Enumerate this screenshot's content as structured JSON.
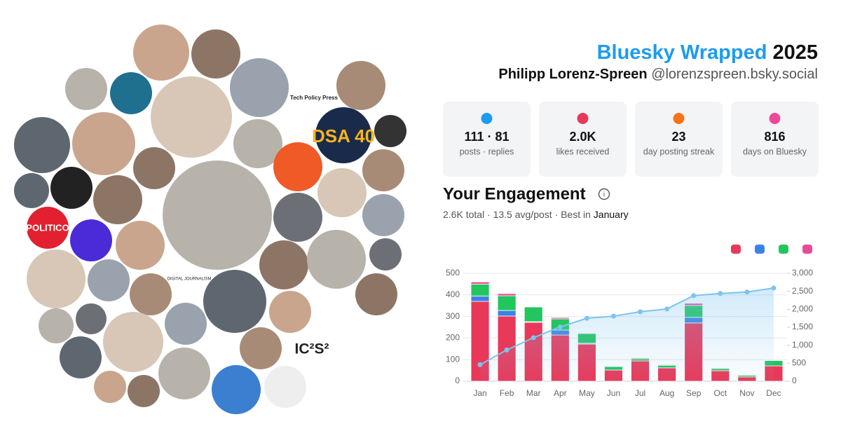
{
  "header": {
    "title": "Bluesky Wrapped",
    "year": "2025",
    "name": "Philipp Lorenz-Spreen",
    "handle": "@lorenzspreen.bsky.social"
  },
  "stats": [
    {
      "value": "111 · 81",
      "label": "posts · replies"
    },
    {
      "value": "2.0K",
      "label": "likes received"
    },
    {
      "value": "23",
      "label": "day posting streak"
    },
    {
      "value": "816",
      "label": "days on Bluesky"
    }
  ],
  "engagement": {
    "title": "Your Engagement",
    "summary": "2.6K total · 13.5 avg/post · Best in",
    "best": "January"
  },
  "logos": [
    "POLITICO",
    "DSA 40",
    "IC²S²",
    "Tech Policy Press",
    "DIGITAL JOURNALISM"
  ],
  "chart_data": {
    "type": "bar",
    "stacked": true,
    "categories": [
      "Jan",
      "Feb",
      "Mar",
      "Apr",
      "May",
      "Jun",
      "Jul",
      "Aug",
      "Sep",
      "Oct",
      "Nov",
      "Dec"
    ],
    "series": [
      {
        "color": "#e8395a",
        "values": [
          370,
          302,
          273,
          214,
          172,
          52,
          94,
          62,
          270,
          49,
          20,
          71
        ]
      },
      {
        "color": "#3b82e6",
        "values": [
          25,
          26,
          3,
          23,
          4,
          0,
          0,
          0,
          26,
          0,
          0,
          0
        ]
      },
      {
        "color": "#22c55e",
        "values": [
          55,
          68,
          68,
          52,
          45,
          16,
          10,
          12,
          55,
          10,
          8,
          25
        ]
      },
      {
        "color": "#ec4899",
        "values": [
          10,
          10,
          2,
          6,
          3,
          2,
          4,
          3,
          10,
          3,
          2,
          3
        ]
      },
      {
        "type": "line",
        "axis": "y2",
        "color": "#7cc4ee",
        "values": [
          460,
          870,
          1210,
          1510,
          1750,
          1810,
          1930,
          2010,
          2380,
          2440,
          2480,
          2590
        ]
      }
    ],
    "ylim": [
      0,
      500
    ],
    "yticks": [
      0,
      100,
      200,
      300,
      400,
      500
    ],
    "y2lim": [
      0,
      3000
    ],
    "y2ticks": [
      0,
      500,
      {
        "value": 1000,
        "label": "1,000"
      },
      {
        "value": 1500,
        "label": "1,500"
      },
      {
        "value": 2000,
        "label": "2,000"
      },
      {
        "value": 2500,
        "label": "2,500"
      },
      {
        "value": 3000,
        "label": "3,000"
      }
    ],
    "grid": true
  }
}
